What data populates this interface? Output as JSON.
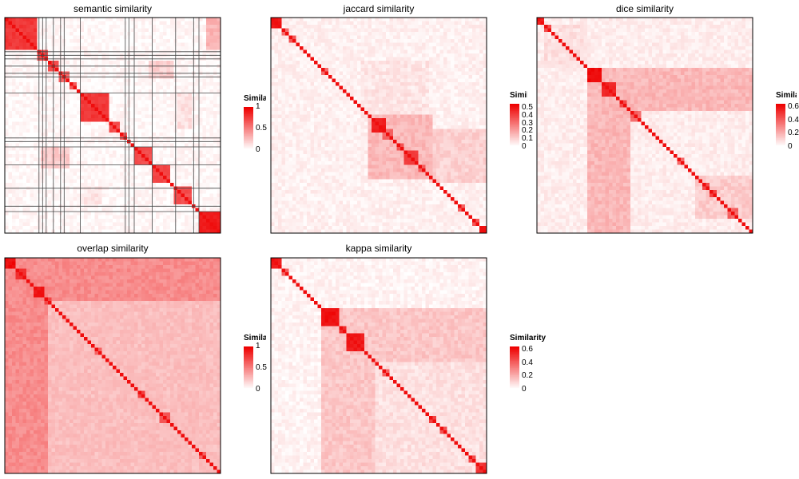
{
  "chart_data": [
    {
      "type": "heatmap",
      "title": "semantic similarity",
      "n": 60,
      "blocks": [
        [
          0,
          9,
          0.78
        ],
        [
          9,
          12,
          0.7
        ],
        [
          12,
          15,
          0.72
        ],
        [
          15,
          18,
          0.6
        ],
        [
          18,
          20,
          0.65
        ],
        [
          21,
          29,
          0.78
        ],
        [
          29,
          32,
          0.7
        ],
        [
          32,
          34,
          0.66
        ],
        [
          36,
          41,
          0.7
        ],
        [
          41,
          46,
          0.72
        ],
        [
          47,
          52,
          0.7
        ],
        [
          54,
          60,
          0.9
        ]
      ],
      "offdiag": [
        [
          0,
          9,
          56,
          60,
          0.3
        ],
        [
          12,
          17,
          40,
          47,
          0.18
        ],
        [
          21,
          31,
          48,
          52,
          0.12
        ],
        [
          36,
          42,
          10,
          18,
          0.2
        ],
        [
          47,
          52,
          22,
          27,
          0.1
        ]
      ],
      "base": 0.03,
      "hlines": [
        9.5,
        10.5,
        11.5,
        13.5,
        15.5,
        16.5,
        21,
        33.5,
        34.5,
        36,
        41,
        47.5,
        52.5,
        54
      ],
      "vlines": [
        9.5,
        10.5,
        11.5,
        13.5,
        15.5,
        16.5,
        21,
        33.5,
        34.5,
        36,
        41,
        47.5,
        52.5,
        54
      ],
      "legend": {
        "title": "Similarity",
        "ticks": [
          "1",
          "0.5",
          "0"
        ],
        "max": 1
      }
    },
    {
      "type": "heatmap",
      "title": "jaccard similarity",
      "n": 60,
      "blocks": [
        [
          0,
          3,
          0.9
        ],
        [
          3,
          5,
          0.6
        ],
        [
          5,
          7,
          0.7
        ],
        [
          14,
          16,
          0.6
        ],
        [
          28,
          32,
          0.9
        ],
        [
          31,
          34,
          0.6
        ],
        [
          35,
          37,
          0.7
        ],
        [
          37,
          41,
          0.75
        ],
        [
          41,
          43,
          0.6
        ],
        [
          52,
          54,
          0.6
        ],
        [
          56,
          58,
          0.7
        ],
        [
          58,
          60,
          0.9
        ]
      ],
      "offdiag": [
        [
          27,
          45,
          27,
          45,
          0.28
        ],
        [
          31,
          46,
          44,
          60,
          0.18
        ],
        [
          12,
          28,
          25,
          44,
          0.1
        ]
      ],
      "base": 0.06,
      "hlines": [],
      "vlines": [],
      "legend": {
        "title": "Similarity",
        "ticks": [
          "0.5",
          "0.4",
          "0.3",
          "0.2",
          "0.1",
          "0"
        ],
        "max": 0.55
      }
    },
    {
      "type": "heatmap",
      "title": "dice similarity",
      "n": 60,
      "blocks": [
        [
          0,
          2,
          0.9
        ],
        [
          2,
          4,
          0.7
        ],
        [
          14,
          18,
          0.95
        ],
        [
          18,
          22,
          0.85
        ],
        [
          23,
          25,
          0.7
        ],
        [
          26,
          29,
          0.6
        ],
        [
          39,
          41,
          0.6
        ],
        [
          46,
          48,
          0.7
        ],
        [
          48,
          50,
          0.75
        ],
        [
          53,
          56,
          0.6
        ]
      ],
      "offdiag": [
        [
          14,
          26,
          14,
          60,
          0.28
        ],
        [
          26,
          60,
          14,
          26,
          0.28
        ],
        [
          44,
          56,
          44,
          60,
          0.2
        ],
        [
          2,
          14,
          2,
          14,
          0.12
        ]
      ],
      "base": 0.07,
      "hlines": [],
      "vlines": [],
      "legend": {
        "title": "Similarity",
        "ticks": [
          "0.6",
          "0.4",
          "0.2",
          "0"
        ],
        "max": 0.65
      }
    },
    {
      "type": "heatmap",
      "title": "overlap similarity",
      "n": 60,
      "blocks": [
        [
          0,
          3,
          0.95
        ],
        [
          3,
          6,
          0.8
        ],
        [
          8,
          11,
          0.9
        ],
        [
          11,
          13,
          0.75
        ],
        [
          25,
          27,
          0.6
        ],
        [
          37,
          39,
          0.75
        ],
        [
          43,
          46,
          0.7
        ],
        [
          54,
          56,
          0.6
        ]
      ],
      "offdiag": [
        [
          0,
          12,
          0,
          60,
          0.45
        ],
        [
          0,
          60,
          0,
          12,
          0.45
        ],
        [
          12,
          60,
          12,
          60,
          0.22
        ]
      ],
      "base": 0.25,
      "hlines": [],
      "vlines": [],
      "legend": {
        "title": "Similarity",
        "ticks": [
          "1",
          "0.5",
          "0"
        ],
        "max": 1
      }
    },
    {
      "type": "heatmap",
      "title": "kappa similarity",
      "n": 60,
      "blocks": [
        [
          0,
          3,
          0.9
        ],
        [
          3,
          5,
          0.65
        ],
        [
          14,
          19,
          0.95
        ],
        [
          19,
          21,
          0.8
        ],
        [
          21,
          26,
          0.9
        ],
        [
          31,
          33,
          0.6
        ],
        [
          44,
          46,
          0.75
        ],
        [
          47,
          49,
          0.7
        ],
        [
          55,
          57,
          0.7
        ],
        [
          57,
          60,
          0.8
        ]
      ],
      "offdiag": [
        [
          14,
          29,
          14,
          60,
          0.22
        ],
        [
          29,
          60,
          14,
          29,
          0.22
        ],
        [
          29,
          60,
          29,
          60,
          0.12
        ]
      ],
      "base": 0.05,
      "hlines": [],
      "vlines": [],
      "legend": {
        "title": "Similarity",
        "ticks": [
          "0.6",
          "0.4",
          "0.2",
          "0"
        ],
        "max": 0.65
      }
    }
  ]
}
